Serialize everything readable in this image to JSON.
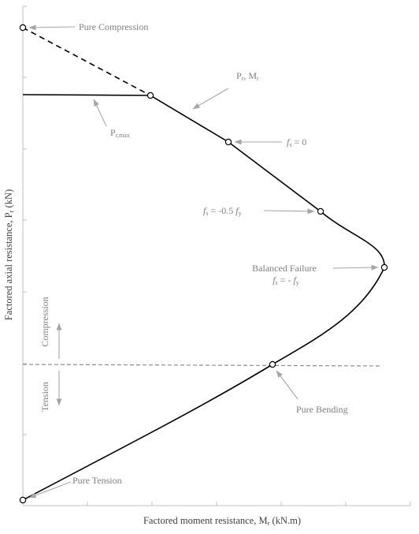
{
  "x_axis_title": {
    "main": "Factored moment resistance, M",
    "sub": "r",
    "unit": " (kN.m)"
  },
  "y_axis_title": {
    "main": "Factored axial resistance, P",
    "sub": "r",
    "unit": " (kN)"
  },
  "labels": {
    "pure_compression": "Pure Compression",
    "pr_mr": {
      "p": "P",
      "p_sub": "r",
      "sep": ", M",
      "m_sub": "r"
    },
    "pr_max": {
      "p": "P",
      "sub": "r,max"
    },
    "fs_zero": {
      "f": "f",
      "sub": "s",
      "rest": " = 0"
    },
    "fs_half": {
      "f": "f",
      "sub": "s",
      "rest": " = -0.5 ",
      "fy": "f",
      "fy_sub": "y"
    },
    "balanced_failure": "Balanced Failure",
    "balanced_condition": {
      "f": "f",
      "sub": "s",
      "rest": " = - ",
      "fy": "f",
      "fy_sub": "y"
    },
    "compression": "Compression",
    "tension": "Tension",
    "pure_bending": "Pure Bending",
    "pure_tension": "Pure Tension"
  },
  "colors": {
    "curve": "#000000",
    "annotation": "#7f7f7f",
    "arrow": "#a6a6a6",
    "axis": "#bfbfbf",
    "zero_line": "#8c8c8c"
  }
}
